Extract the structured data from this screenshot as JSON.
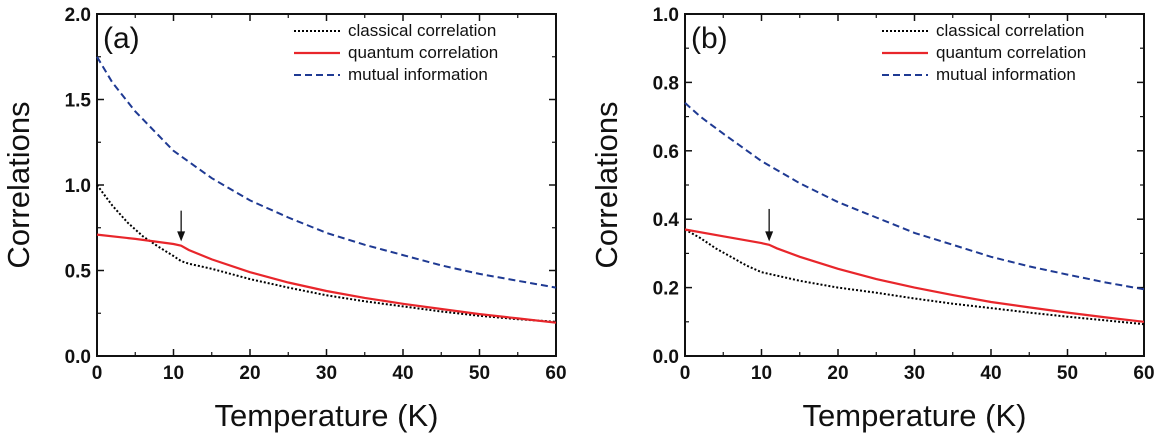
{
  "chart_data": [
    {
      "type": "line",
      "panel_label": "(a)",
      "xlabel": "Temperature (K)",
      "ylabel": "Correlations",
      "xlim": [
        0,
        60
      ],
      "ylim": [
        0.0,
        2.0
      ],
      "x_ticks": [
        0,
        10,
        20,
        30,
        40,
        50,
        60
      ],
      "y_ticks": [
        0.0,
        0.5,
        1.0,
        1.5,
        2.0
      ],
      "y_tick_labels": [
        "0.0",
        "0.5",
        "1.0",
        "1.5",
        "2.0"
      ],
      "legend_position": "top-right",
      "annotation": {
        "text": "",
        "type": "arrow",
        "x": 11,
        "y_from": 0.85,
        "y_to": 0.67
      },
      "series": [
        {
          "name": "classical correlation",
          "color": "#000000",
          "style": "dotted",
          "x": [
            0,
            2,
            4,
            6,
            8,
            10,
            11,
            12,
            15,
            20,
            25,
            30,
            35,
            40,
            45,
            50,
            55,
            60
          ],
          "y": [
            1.0,
            0.88,
            0.78,
            0.7,
            0.64,
            0.585,
            0.555,
            0.54,
            0.51,
            0.45,
            0.4,
            0.355,
            0.32,
            0.29,
            0.26,
            0.235,
            0.215,
            0.2
          ]
        },
        {
          "name": "quantum correlation",
          "color": "#e8262b",
          "style": "solid",
          "x": [
            0,
            5,
            10,
            11,
            12,
            15,
            20,
            25,
            30,
            35,
            40,
            45,
            50,
            55,
            60
          ],
          "y": [
            0.71,
            0.685,
            0.655,
            0.645,
            0.62,
            0.565,
            0.49,
            0.43,
            0.38,
            0.34,
            0.305,
            0.275,
            0.245,
            0.22,
            0.195
          ]
        },
        {
          "name": "mutual information",
          "color": "#1f3a93",
          "style": "dashed",
          "x": [
            0,
            2,
            5,
            10,
            15,
            20,
            25,
            30,
            35,
            40,
            45,
            50,
            55,
            60
          ],
          "y": [
            1.75,
            1.6,
            1.43,
            1.2,
            1.04,
            0.91,
            0.81,
            0.72,
            0.65,
            0.59,
            0.53,
            0.48,
            0.44,
            0.4
          ]
        }
      ]
    },
    {
      "type": "line",
      "panel_label": "(b)",
      "xlabel": "Temperature (K)",
      "ylabel": "Correlations",
      "xlim": [
        0,
        60
      ],
      "ylim": [
        0.0,
        1.0
      ],
      "x_ticks": [
        0,
        10,
        20,
        30,
        40,
        50,
        60
      ],
      "y_ticks": [
        0.0,
        0.2,
        0.4,
        0.6,
        0.8,
        1.0
      ],
      "y_tick_labels": [
        "0.0",
        "0.2",
        "0.4",
        "0.6",
        "0.8",
        "1.0"
      ],
      "legend_position": "top-right",
      "annotation": {
        "text": "",
        "type": "arrow",
        "x": 11,
        "y_from": 0.43,
        "y_to": 0.335
      },
      "series": [
        {
          "name": "classical correlation",
          "color": "#000000",
          "style": "dotted",
          "x": [
            0,
            2,
            4,
            6,
            8,
            10,
            11,
            12,
            15,
            20,
            25,
            30,
            35,
            40,
            45,
            50,
            55,
            60
          ],
          "y": [
            0.37,
            0.345,
            0.315,
            0.29,
            0.265,
            0.245,
            0.24,
            0.235,
            0.22,
            0.2,
            0.185,
            0.168,
            0.153,
            0.14,
            0.127,
            0.115,
            0.104,
            0.093
          ]
        },
        {
          "name": "quantum correlation",
          "color": "#e8262b",
          "style": "solid",
          "x": [
            0,
            5,
            10,
            11,
            12,
            15,
            20,
            25,
            30,
            35,
            40,
            45,
            50,
            55,
            60
          ],
          "y": [
            0.37,
            0.35,
            0.33,
            0.325,
            0.315,
            0.29,
            0.255,
            0.225,
            0.2,
            0.178,
            0.158,
            0.142,
            0.127,
            0.113,
            0.1
          ]
        },
        {
          "name": "mutual information",
          "color": "#1f3a93",
          "style": "dashed",
          "x": [
            0,
            2,
            5,
            10,
            15,
            20,
            25,
            30,
            35,
            40,
            45,
            50,
            55,
            60
          ],
          "y": [
            0.74,
            0.7,
            0.65,
            0.57,
            0.505,
            0.45,
            0.405,
            0.36,
            0.325,
            0.29,
            0.262,
            0.238,
            0.215,
            0.195
          ]
        }
      ]
    }
  ]
}
